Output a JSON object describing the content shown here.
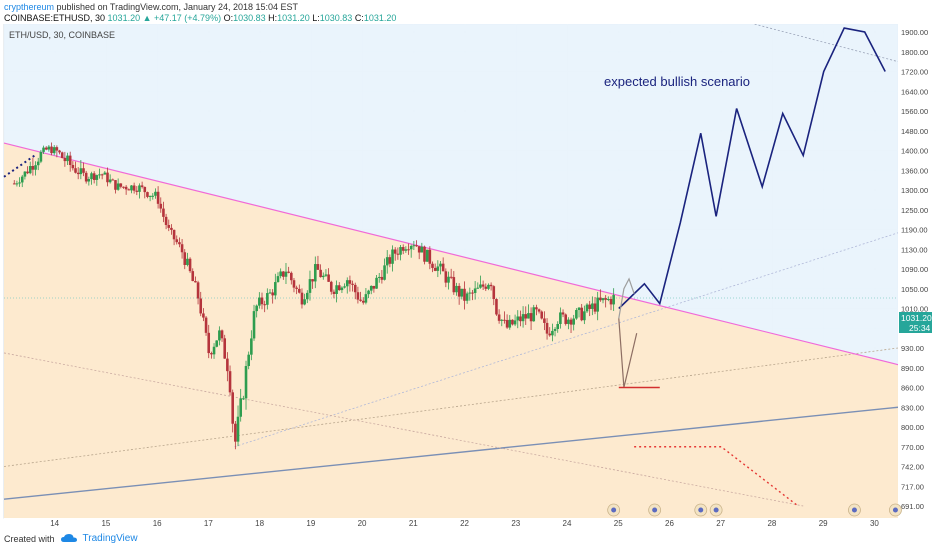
{
  "header": {
    "author": "crypthereum",
    "published": " published on TradingView.com, January 24, 2018 15:04 EST"
  },
  "ohlc": {
    "symbol": "COINBASE:ETHUSD, 30",
    "last": "1031.20",
    "change": "▲ +47.17 (+4.79%)",
    "o_label": "O:",
    "o": "1030.83",
    "h_label": "H:",
    "h": "1031.20",
    "l_label": "L:",
    "l": "1030.83",
    "c_label": "C:",
    "c": "1031.20"
  },
  "footer": {
    "created_with": "Created with",
    "brand": "TradingView"
  },
  "chart_data": {
    "type": "candlestick",
    "legend": "ETH/USD, 30, COINBASE",
    "annotation": "expected bullish scenario",
    "price_label": "1031.20",
    "timer_label": "25:34",
    "x_ticks": [
      "14",
      "15",
      "16",
      "17",
      "18",
      "19",
      "20",
      "21",
      "22",
      "23",
      "24",
      "25",
      "26",
      "27",
      "28",
      "29",
      "30"
    ],
    "y_ticks": [
      "1900.00",
      "1800.00",
      "1720.00",
      "1640.00",
      "1560.00",
      "1480.00",
      "1400.00",
      "1360.00",
      "1300.00",
      "1250.00",
      "1190.00",
      "1130.00",
      "1090.00",
      "1050.00",
      "1010.00",
      "970.00",
      "930.00",
      "890.00",
      "860.00",
      "830.00",
      "800.00",
      "770.00",
      "742.00",
      "717.00",
      "691.00"
    ],
    "price_path": [
      [
        13.2,
        1320
      ],
      [
        13.6,
        1380
      ],
      [
        13.9,
        1410
      ],
      [
        14.2,
        1380
      ],
      [
        14.6,
        1340
      ],
      [
        14.9,
        1350
      ],
      [
        15.2,
        1310
      ],
      [
        15.6,
        1310
      ],
      [
        16.0,
        1280
      ],
      [
        16.2,
        1190
      ],
      [
        16.5,
        1120
      ],
      [
        16.8,
        1030
      ],
      [
        17.0,
        920
      ],
      [
        17.2,
        960
      ],
      [
        17.4,
        880
      ],
      [
        17.5,
        770
      ],
      [
        17.7,
        870
      ],
      [
        17.9,
        1010
      ],
      [
        18.2,
        1040
      ],
      [
        18.5,
        1090
      ],
      [
        18.8,
        1030
      ],
      [
        19.1,
        1090
      ],
      [
        19.4,
        1050
      ],
      [
        19.7,
        1070
      ],
      [
        20.0,
        1020
      ],
      [
        20.3,
        1070
      ],
      [
        20.6,
        1120
      ],
      [
        20.8,
        1140
      ],
      [
        21.0,
        1150
      ],
      [
        21.2,
        1120
      ],
      [
        21.5,
        1090
      ],
      [
        21.8,
        1050
      ],
      [
        22.0,
        1030
      ],
      [
        22.3,
        1050
      ],
      [
        22.5,
        1070
      ],
      [
        22.6,
        1010
      ],
      [
        22.8,
        970
      ],
      [
        23.1,
        990
      ],
      [
        23.4,
        1000
      ],
      [
        23.6,
        960
      ],
      [
        23.8,
        990
      ],
      [
        24.0,
        990
      ],
      [
        24.3,
        1000
      ],
      [
        24.6,
        1020
      ],
      [
        24.9,
        1031
      ]
    ],
    "bull_scenario": [
      [
        25.0,
        1010
      ],
      [
        25.2,
        1030
      ],
      [
        25.5,
        1060
      ],
      [
        25.8,
        1020
      ],
      [
        26.2,
        1210
      ],
      [
        26.6,
        1470
      ],
      [
        26.9,
        1230
      ],
      [
        27.3,
        1570
      ],
      [
        27.8,
        1310
      ],
      [
        28.2,
        1550
      ],
      [
        28.6,
        1390
      ],
      [
        29.0,
        1720
      ],
      [
        29.4,
        1920
      ],
      [
        29.8,
        1900
      ],
      [
        30.2,
        1720
      ]
    ],
    "alt_scenario": [
      [
        25.0,
        990
      ],
      [
        25.1,
        1050
      ],
      [
        25.2,
        1070
      ],
      [
        25.3,
        1040
      ]
    ],
    "bear_scenario": [
      [
        25.0,
        990
      ],
      [
        25.1,
        860
      ],
      [
        25.35,
        960
      ]
    ],
    "support_level": [
      [
        25.0,
        860
      ],
      [
        25.8,
        860
      ]
    ],
    "red_dotted": [
      [
        25.3,
        770
      ],
      [
        27.0,
        770
      ],
      [
        28.5,
        691
      ]
    ],
    "main_trend_x": [
      13.0,
      30.5
    ],
    "main_trend_y": [
      1430,
      895
    ],
    "bull_color": "#1a237e",
    "alt_color": "#9e9e9e",
    "bear_color": "#8d6e63",
    "trend_color": "#f06ad7",
    "support_color": "#d32f2f"
  }
}
